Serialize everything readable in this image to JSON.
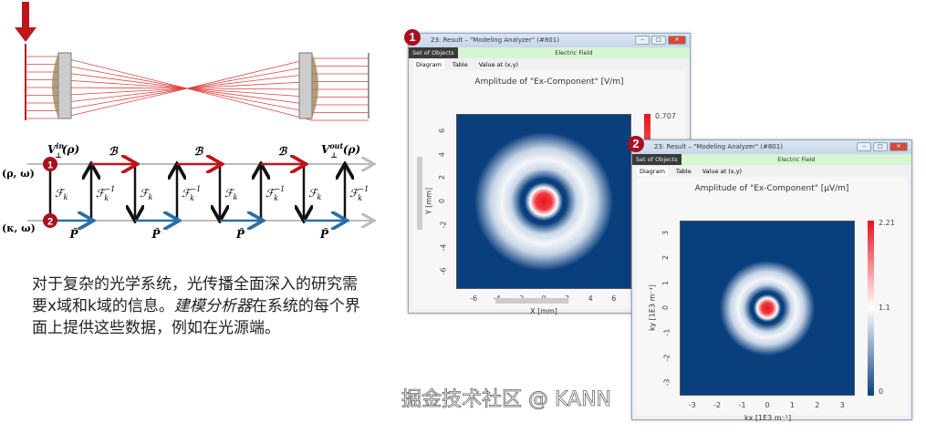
{
  "diagram": {
    "v_in": {
      "base": "V",
      "sub": "⊥",
      "sup": "in",
      "arg": "(ρ)"
    },
    "v_out": {
      "base": "V",
      "sub": "⊥",
      "sup": "out",
      "arg": "(ρ)"
    },
    "space_domain": "(ρ, ω)",
    "k_domain": "(κ, ω)",
    "operator_b": "ℬ",
    "operator_p": "P̂",
    "fourier": {
      "base": "ℱ",
      "sub": "k"
    },
    "inverse_sup": "−1",
    "badge_1": "1",
    "badge_2": "2",
    "colors": {
      "space_arrow": "#c0141e",
      "k_arrow": "#2a6ea6",
      "axis": "#bbbbbb",
      "badge": "#a8101e"
    }
  },
  "description": {
    "part1": "对于复杂的光学系统，光传播全面深入的研究需要x域和k域的信息。",
    "part2_italic": "建模分析器",
    "part3": "在系统的每个界面上提供这些数据，例如在光源端。"
  },
  "windows": [
    {
      "badge": "1",
      "title": "23: Result – \"Modeling Analyzer\" (#801)",
      "set_of_objects": "Set of Objects",
      "field": "Electric Field",
      "tabs": [
        "Diagram",
        "Table",
        "Value at (x,y)"
      ]
    },
    {
      "badge": "2",
      "title": "23: Result – \"Modeling Analyzer\" (#801)",
      "set_of_objects": "Set of Objects",
      "field": "Electric Field",
      "tabs": [
        "Diagram",
        "Table",
        "Value at (x,y)"
      ]
    }
  ],
  "chart_data": [
    {
      "type": "heatmap",
      "title": "Amplitude of \"Ex-Component\"  [V/m]",
      "xlabel": "X [mm]",
      "ylabel": "Y [mm]",
      "xticks": [
        -6,
        -4,
        -2,
        0,
        2,
        4,
        6
      ],
      "yticks": [
        6,
        4,
        2,
        0,
        -2,
        -4,
        -6
      ],
      "xlim": [
        -7.5,
        7.5
      ],
      "ylim": [
        -7.5,
        7.5
      ],
      "colorbar": {
        "max_label": "0.707",
        "range": [
          0,
          0.707
        ],
        "colors": [
          "#0a3f7e",
          "#ffffff",
          "#e8141e"
        ]
      }
    },
    {
      "type": "heatmap",
      "title": "Amplitude of \"Ex-Component\"  [μV/m]",
      "xlabel": "kx [1E3 m⁻¹]",
      "ylabel": "ky [1E3 m⁻¹]",
      "xticks": [
        -3,
        -2,
        -1,
        0,
        1,
        2,
        3
      ],
      "yticks": [
        3,
        2,
        1,
        0,
        -1,
        -2,
        -3
      ],
      "xlim": [
        -3.5,
        3.5
      ],
      "ylim": [
        -3.5,
        3.5
      ],
      "colorbar": {
        "max_label": "2.21",
        "mid_label": "1.1",
        "min_label": "0",
        "range": [
          0,
          2.21
        ],
        "colors": [
          "#0a3f7e",
          "#ffffff",
          "#e8141e"
        ]
      }
    }
  ],
  "watermark": "掘金技术社区 @ KANN"
}
